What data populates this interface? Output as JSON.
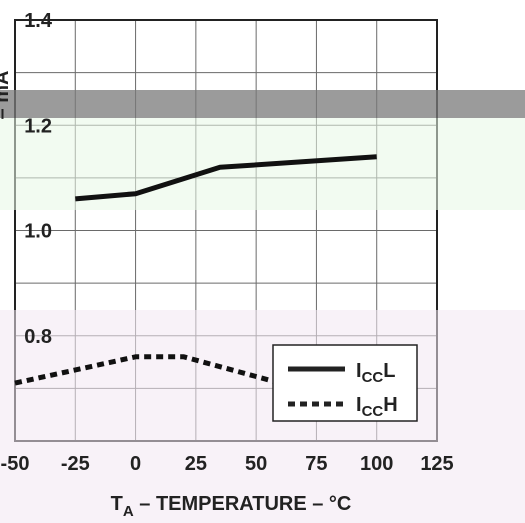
{
  "chart_data": {
    "type": "line",
    "xlabel": "T",
    "xlabel_sub": "A",
    "xlabel_rest": " – TEMPERATURE – °C",
    "ylabel": "– mA",
    "x_ticks": [
      "-50",
      "-25",
      "0",
      "25",
      "50",
      "75",
      "100",
      "125"
    ],
    "y_ticks": [
      "1.4",
      "1.2",
      "1.0",
      "0.8"
    ],
    "xlim": [
      -50,
      125
    ],
    "ylim": [
      0.6,
      1.4
    ],
    "grid": true,
    "legend_position": "bottom-right",
    "series": [
      {
        "name": "ICCL",
        "name_main": "I",
        "name_sub": "CC",
        "name_suffix": "L",
        "style": "solid",
        "x": [
          -25,
          0,
          35,
          100
        ],
        "y": [
          1.06,
          1.07,
          1.12,
          1.14
        ]
      },
      {
        "name": "ICCH",
        "name_main": "I",
        "name_sub": "CC",
        "name_suffix": "H",
        "style": "dotted",
        "x": [
          -50,
          0,
          20,
          100
        ],
        "y": [
          0.71,
          0.76,
          0.76,
          0.66
        ]
      }
    ]
  }
}
